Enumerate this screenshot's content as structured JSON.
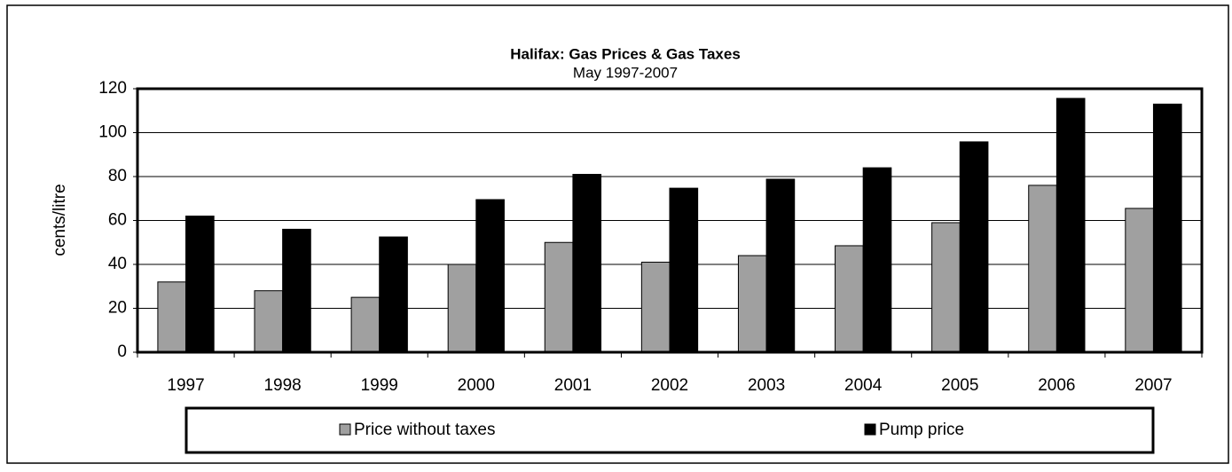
{
  "chart_data": {
    "type": "bar",
    "title": "Halifax: Gas Prices & Gas Taxes",
    "subtitle": "May 1997-2007",
    "y_label": "cents/litre",
    "categories": [
      "1997",
      "1998",
      "1999",
      "2000",
      "2001",
      "2002",
      "2003",
      "2004",
      "2005",
      "2006",
      "2007"
    ],
    "series": [
      {
        "name": "Price without taxes",
        "color": "#a0a0a0",
        "values": [
          32,
          28,
          25,
          40,
          50,
          41,
          44,
          48.5,
          59,
          76,
          65.5
        ]
      },
      {
        "name": "Pump price",
        "color": "#000000",
        "values": [
          62,
          56,
          52.5,
          69.5,
          81,
          74.7,
          78.8,
          84,
          95.8,
          115.6,
          113
        ]
      }
    ],
    "ylim": [
      0,
      120
    ],
    "yticks": [
      0,
      20,
      40,
      60,
      80,
      100,
      120
    ],
    "grid": true,
    "legend": "bottom"
  }
}
